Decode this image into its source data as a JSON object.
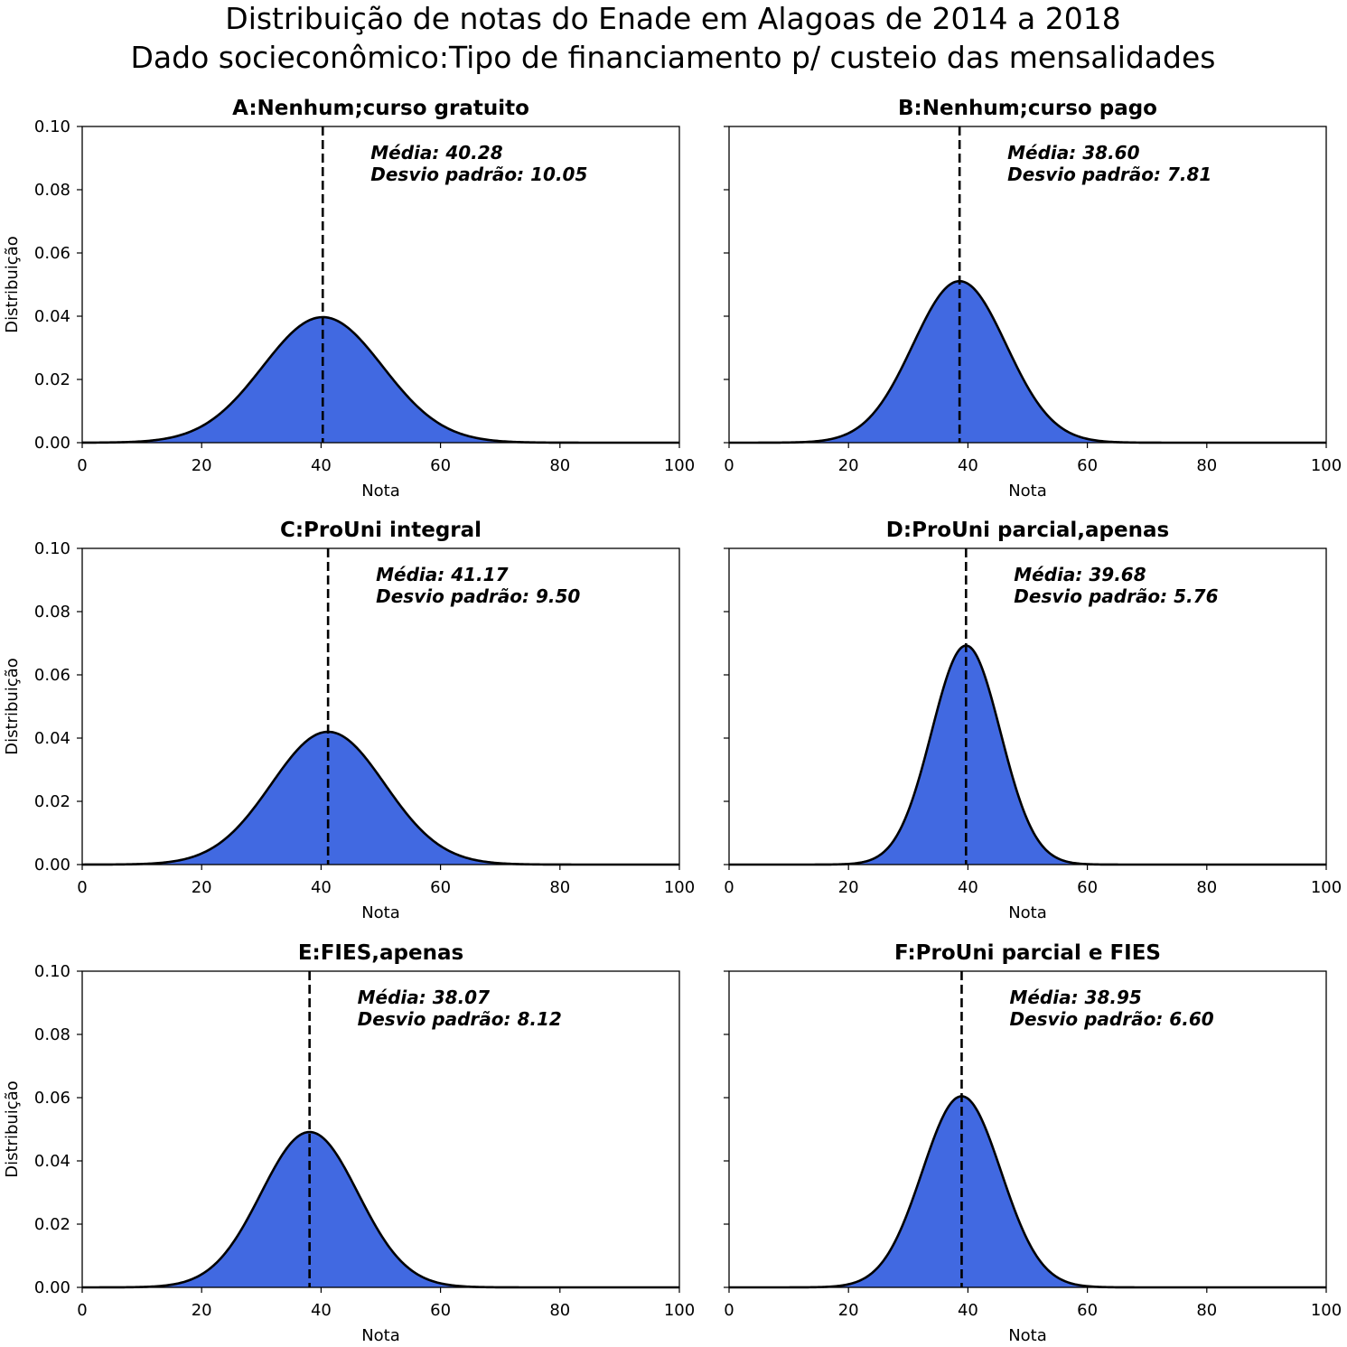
{
  "figure": {
    "title_line1": "Distribuição de notas do Enade em Alagoas de 2014 a 2018",
    "title_line2": "Dado socieconômico:Tipo de financiamento p/ custeio das mensalidades"
  },
  "colors": {
    "fill": "#4169e1",
    "line": "#000000"
  },
  "chart_data": [
    {
      "type": "area",
      "title": "A:Nenhum;curso gratuito",
      "mean": 40.28,
      "std": 10.05,
      "stats_line1": "Média: 40.28",
      "stats_line2": "Desvio padrão: 10.05",
      "xlabel": "Nota",
      "ylabel": "Distribuição",
      "xlim": [
        0,
        100
      ],
      "ylim": [
        0,
        0.1
      ],
      "xticks": [
        "0",
        "20",
        "40",
        "60",
        "80",
        "100"
      ],
      "yticks": [
        "0.00",
        "0.02",
        "0.04",
        "0.06",
        "0.08",
        "0.10"
      ]
    },
    {
      "type": "area",
      "title": "B:Nenhum;curso pago",
      "mean": 38.6,
      "std": 7.81,
      "stats_line1": "Média: 38.60",
      "stats_line2": "Desvio padrão: 7.81",
      "xlabel": "Nota",
      "ylabel": "",
      "xlim": [
        0,
        100
      ],
      "ylim": [
        0,
        0.1
      ],
      "xticks": [
        "0",
        "20",
        "40",
        "60",
        "80",
        "100"
      ],
      "yticks": []
    },
    {
      "type": "area",
      "title": "C:ProUni integral",
      "mean": 41.17,
      "std": 9.5,
      "stats_line1": "Média: 41.17",
      "stats_line2": "Desvio padrão: 9.50",
      "xlabel": "Nota",
      "ylabel": "Distribuição",
      "xlim": [
        0,
        100
      ],
      "ylim": [
        0,
        0.1
      ],
      "xticks": [
        "0",
        "20",
        "40",
        "60",
        "80",
        "100"
      ],
      "yticks": [
        "0.00",
        "0.02",
        "0.04",
        "0.06",
        "0.08",
        "0.10"
      ]
    },
    {
      "type": "area",
      "title": "D:ProUni parcial,apenas",
      "mean": 39.68,
      "std": 5.76,
      "stats_line1": "Média: 39.68",
      "stats_line2": "Desvio padrão: 5.76",
      "xlabel": "Nota",
      "ylabel": "",
      "xlim": [
        0,
        100
      ],
      "ylim": [
        0,
        0.1
      ],
      "xticks": [
        "0",
        "20",
        "40",
        "60",
        "80",
        "100"
      ],
      "yticks": []
    },
    {
      "type": "area",
      "title": "E:FIES,apenas",
      "mean": 38.07,
      "std": 8.12,
      "stats_line1": "Média: 38.07",
      "stats_line2": "Desvio padrão: 8.12",
      "xlabel": "Nota",
      "ylabel": "Distribuição",
      "xlim": [
        0,
        100
      ],
      "ylim": [
        0,
        0.1
      ],
      "xticks": [
        "0",
        "20",
        "40",
        "60",
        "80",
        "100"
      ],
      "yticks": [
        "0.00",
        "0.02",
        "0.04",
        "0.06",
        "0.08",
        "0.10"
      ]
    },
    {
      "type": "area",
      "title": "F:ProUni parcial e FIES",
      "mean": 38.95,
      "std": 6.6,
      "stats_line1": "Média: 38.95",
      "stats_line2": "Desvio padrão: 6.60",
      "xlabel": "Nota",
      "ylabel": "",
      "xlim": [
        0,
        100
      ],
      "ylim": [
        0,
        0.1
      ],
      "xticks": [
        "0",
        "20",
        "40",
        "60",
        "80",
        "100"
      ],
      "yticks": []
    }
  ]
}
